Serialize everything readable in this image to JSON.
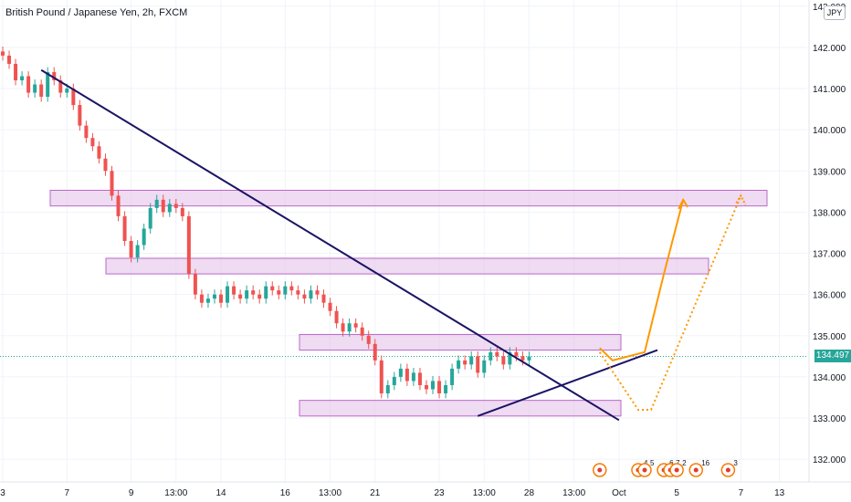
{
  "header": {
    "title": "British Pound / Japanese Yen, 2h, FXCM",
    "currency": "JPY"
  },
  "current_price": "134.497",
  "colors": {
    "up": "#26a69a",
    "down": "#ef5350",
    "zone_fill": "#e1bee7",
    "zone_stroke": "#ba68c8",
    "trendline": "#1a1464",
    "arrow": "#ff9800",
    "price_line": "#26a69a",
    "event": "#f57c00"
  },
  "chart_data": {
    "type": "candlestick",
    "symbol": "GBPJPY",
    "timeframe": "2h",
    "ylim": [
      131.5,
      143.0
    ],
    "y_ticks": [
      132,
      133,
      134,
      135,
      136,
      137,
      138,
      139,
      140,
      141,
      142,
      143
    ],
    "y_tick_labels": [
      "132.000",
      "133.000",
      "134.000",
      "135.000",
      "136.000",
      "137.000",
      "138.000",
      "139.000",
      "140.000",
      "141.000",
      "142.000",
      "143.000"
    ],
    "x_ticks": [
      {
        "label": "3",
        "i": 0
      },
      {
        "label": "7",
        "i": 10
      },
      {
        "label": "9",
        "i": 20
      },
      {
        "label": "13:00",
        "i": 27
      },
      {
        "label": "14",
        "i": 34
      },
      {
        "label": "16",
        "i": 44
      },
      {
        "label": "13:00",
        "i": 51
      },
      {
        "label": "21",
        "i": 58
      },
      {
        "label": "23",
        "i": 68
      },
      {
        "label": "13:00",
        "i": 75
      },
      {
        "label": "28",
        "i": 82
      },
      {
        "label": "13:00",
        "i": 89
      },
      {
        "label": "Oct",
        "i": 96
      },
      {
        "label": "5",
        "i": 105
      },
      {
        "label": "7",
        "i": 115
      },
      {
        "label": "13",
        "i": 121
      }
    ],
    "closes": [
      141.8,
      141.6,
      141.2,
      141.3,
      140.9,
      141.1,
      140.8,
      141.4,
      141.2,
      140.9,
      141.0,
      140.6,
      140.1,
      139.8,
      139.6,
      139.3,
      139.0,
      138.4,
      137.9,
      137.3,
      136.9,
      137.2,
      137.6,
      138.1,
      138.3,
      138.0,
      138.2,
      138.1,
      137.9,
      136.5,
      136.0,
      135.8,
      135.9,
      136.0,
      135.8,
      136.2,
      136.0,
      135.9,
      136.1,
      136.0,
      135.9,
      136.2,
      136.1,
      136.0,
      136.2,
      136.1,
      136.0,
      135.9,
      136.1,
      136.0,
      135.8,
      135.6,
      135.3,
      135.1,
      135.3,
      135.2,
      135.0,
      134.8,
      134.4,
      133.6,
      133.8,
      134.0,
      134.2,
      133.9,
      134.1,
      133.8,
      133.7,
      133.9,
      133.6,
      133.8,
      134.2,
      134.4,
      134.3,
      134.5,
      134.1,
      134.4,
      134.6,
      134.5,
      134.3,
      134.6,
      134.5,
      134.4,
      134.497
    ],
    "resistance_zones": [
      {
        "from": 138.15,
        "to": 138.35
      },
      {
        "from": 136.5,
        "to": 136.7
      },
      {
        "from": 134.65,
        "to": 134.85
      },
      {
        "from": 133.05,
        "to": 133.25
      }
    ],
    "trendline_down": {
      "from": {
        "i": 6,
        "price": 141.45
      },
      "to": {
        "i": 96,
        "price": 132.95
      }
    },
    "trendline_up": {
      "from": {
        "i": 74,
        "price": 133.05
      },
      "to": {
        "i": 102,
        "price": 134.65
      }
    },
    "projection_solid": [
      {
        "i": 93,
        "price": 134.7
      },
      {
        "i": 95,
        "price": 134.4
      },
      {
        "i": 100,
        "price": 134.6
      },
      {
        "i": 103,
        "price": 136.5
      },
      {
        "i": 106,
        "price": 138.3
      }
    ],
    "projection_dotted": [
      {
        "i": 93,
        "price": 134.6
      },
      {
        "i": 99,
        "price": 133.2
      },
      {
        "i": 101,
        "price": 133.2
      },
      {
        "i": 115,
        "price": 138.4
      }
    ],
    "events": [
      {
        "i": 93,
        "count": ""
      },
      {
        "i": 99,
        "count": "4"
      },
      {
        "i": 100,
        "count": "5"
      },
      {
        "i": 103,
        "count": "6"
      },
      {
        "i": 104,
        "count": "7"
      },
      {
        "i": 105,
        "count": "2"
      },
      {
        "i": 108,
        "count": "16"
      },
      {
        "i": 113,
        "count": "3"
      }
    ]
  }
}
